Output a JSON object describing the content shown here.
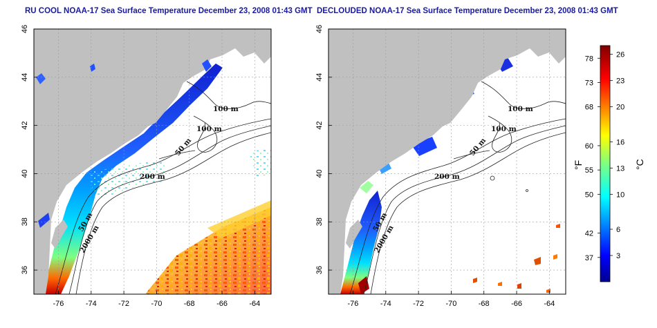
{
  "panels": [
    {
      "id": "left",
      "title": "RU COOL NOAA-17 Sea Surface Temperature December 23, 2008 01:43 GMT",
      "contour_labels": [
        "100 m",
        "100 m",
        "50 m",
        "200 m",
        "50 m",
        "2000 m"
      ]
    },
    {
      "id": "right",
      "title": "DECLOUDED NOAA-17 Sea Surface Temperature December 23, 2008 01:43 GMT",
      "contour_labels": [
        "100 m",
        "100 m",
        "50 m",
        "200 m",
        "50 m",
        "2000 m"
      ]
    }
  ],
  "axes": {
    "x_ticks": [
      "-76",
      "-74",
      "-72",
      "-70",
      "-68",
      "-66",
      "-64"
    ],
    "y_ticks": [
      "36",
      "38",
      "40",
      "42",
      "44",
      "46"
    ],
    "lon_range": [
      -77.5,
      -63
    ],
    "lat_range": [
      35,
      46
    ],
    "grid": true
  },
  "colorbar": {
    "f_label": "°F",
    "c_label": "°C",
    "f_ticks": [
      "78",
      "73",
      "68",
      "60",
      "55",
      "50",
      "42",
      "37"
    ],
    "c_ticks": [
      "26",
      "23",
      "20",
      "16",
      "13",
      "10",
      "6",
      "3"
    ],
    "range_c": [
      0,
      27
    ],
    "colormap": "jet"
  },
  "colors": {
    "title": "#1a1aa0",
    "land": "#c0c0c0",
    "ocean": "#ffffff",
    "contour": "#222222"
  }
}
